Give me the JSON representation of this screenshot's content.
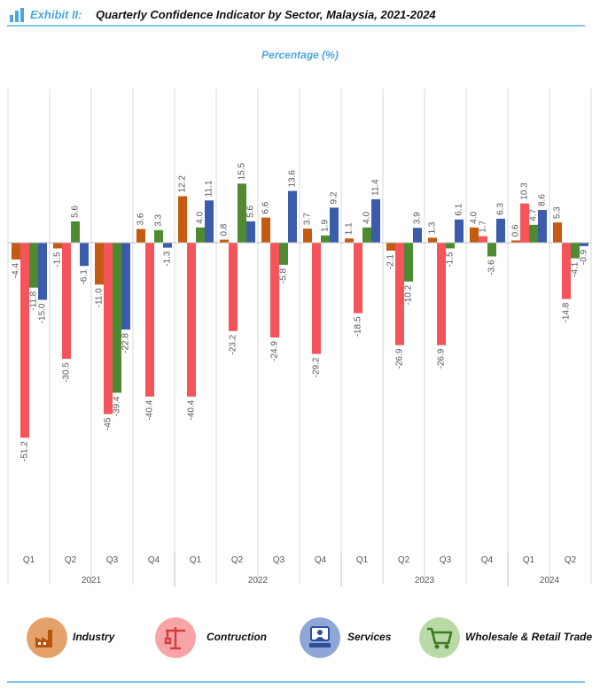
{
  "header": {
    "exhibit_label": "Exhibit II:",
    "title": "Quarterly Confidence Indicator by Sector, Malaysia, 2021-2024"
  },
  "chart_data": {
    "type": "bar",
    "title": "Quarterly Confidence Indicator by Sector, Malaysia, 2021-2024",
    "unit_label": "Percentage (%)",
    "categories": [
      "Q1",
      "Q2",
      "Q3",
      "Q4",
      "Q1",
      "Q2",
      "Q3",
      "Q4",
      "Q1",
      "Q2",
      "Q3",
      "Q4",
      "Q1",
      "Q2"
    ],
    "years": [
      {
        "label": "2021",
        "count": 4
      },
      {
        "label": "2022",
        "count": 4
      },
      {
        "label": "2023",
        "count": 4
      },
      {
        "label": "2024",
        "count": 2
      }
    ],
    "series": [
      {
        "name": "Industry",
        "color": "#c55a11",
        "values": [
          -4.4,
          -1.5,
          -11.0,
          3.6,
          12.2,
          0.8,
          6.6,
          3.7,
          1.1,
          -2.1,
          1.3,
          4.0,
          0.6,
          5.3
        ],
        "labels": [
          "-4.4",
          "-1.5",
          "-11.0",
          "3.6",
          "12.2",
          "0.8",
          "6.6",
          "3.7",
          "1.1",
          "-2.1",
          "1.3",
          "4.0",
          "0.6",
          "5.3"
        ]
      },
      {
        "name": "Contruction",
        "color": "#f4545a",
        "values": [
          -51.2,
          -30.5,
          -45,
          -40.4,
          -40.4,
          -23.2,
          -24.9,
          -29.2,
          -18.5,
          -26.9,
          -26.9,
          1.7,
          10.3,
          -14.8
        ],
        "labels": [
          "-51.2",
          "-30.5",
          "-45",
          "-40.4",
          "-40.4",
          "-23.2",
          "-24.9",
          "-29.2",
          "-18.5",
          "-26.9",
          "-26.9",
          "1.7",
          "10.3",
          "-14.8"
        ]
      },
      {
        "name": "Wholesale & Retail Trade",
        "color": "#4e8a2f",
        "values": [
          -11.8,
          5.6,
          -39.4,
          3.3,
          4.0,
          15.5,
          -5.8,
          1.9,
          4.0,
          -10.2,
          -1.5,
          -3.6,
          4.7,
          -4.1
        ],
        "labels": [
          "-11.8",
          "5.6",
          "-39.4",
          "3.3",
          "4.0",
          "15.5",
          "-5.8",
          "1.9",
          "4.0",
          "-10.2",
          "-1.5",
          "-3.6",
          "4.7",
          "-4.1"
        ]
      },
      {
        "name": "Services",
        "color": "#3a5cab",
        "values": [
          -15.0,
          -6.1,
          -22.8,
          -1.3,
          11.1,
          5.6,
          13.6,
          9.2,
          11.4,
          3.9,
          6.1,
          6.3,
          8.6,
          -0.9
        ],
        "labels": [
          "-15.0",
          "-6.1",
          "-22.8",
          "-1.3",
          "11.1",
          "5.6",
          "13.6",
          "9.2",
          "11.4",
          "3.9",
          "6.1",
          "6.3",
          "8.6",
          "-0.9"
        ]
      }
    ],
    "ylim": [
      -80,
      40
    ],
    "grid": false,
    "legend_position": "bottom"
  },
  "legend": {
    "items": [
      {
        "label": "Industry",
        "icon": "factory-icon",
        "bg": "#e4a26a",
        "fg": "#b8530f"
      },
      {
        "label": "Contruction",
        "icon": "crane-icon",
        "bg": "#f6a4a6",
        "fg": "#d63c40"
      },
      {
        "label": "Services",
        "icon": "service-desk-icon",
        "bg": "#8fa7d6",
        "fg": "#2f4f9a"
      },
      {
        "label": "Wholesale & Retail Trade",
        "icon": "shopping-cart-icon",
        "bg": "#b9d9a6",
        "fg": "#3f7a23"
      }
    ]
  }
}
